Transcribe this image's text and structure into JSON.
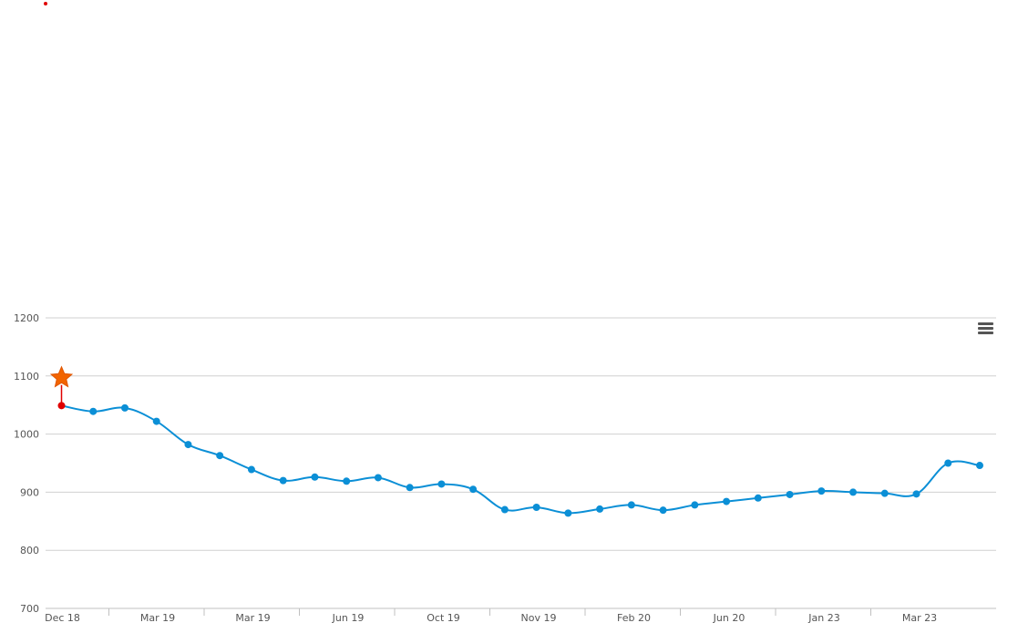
{
  "chart_data": {
    "type": "line",
    "title": "",
    "xlabel": "",
    "ylabel": "",
    "ylim": [
      700,
      1200
    ],
    "yticks": [
      700,
      800,
      900,
      1000,
      1100,
      1200
    ],
    "grid": true,
    "legend": "none",
    "x_tick_labels": [
      "Dec 18",
      "Mar 19",
      "Mar 19",
      "Jun 19",
      "Oct 19",
      "Nov 19",
      "Feb 20",
      "Jun 20",
      "Jan 23",
      "Mar 23"
    ],
    "series": [
      {
        "color": "#0b8fd6",
        "values": [
          1049,
          1039,
          1045,
          1022,
          982,
          963,
          939,
          920,
          926,
          919,
          925,
          908,
          914,
          905,
          870,
          874,
          864,
          871,
          878,
          869,
          878,
          884,
          890,
          896,
          902,
          900,
          898,
          897,
          950,
          946
        ]
      }
    ],
    "first_point_color": "#e00000",
    "marker_star_color": "#f26400",
    "marker_star_value": 1097
  },
  "menu": {
    "icon": "hamburger-menu-icon"
  }
}
